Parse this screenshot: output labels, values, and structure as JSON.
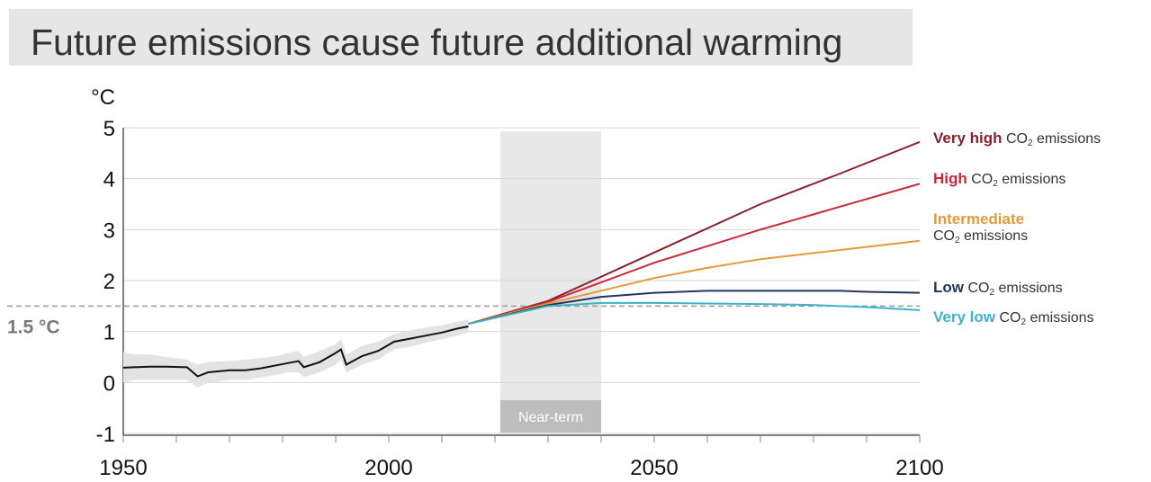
{
  "title": "Future emissions cause future additional warming",
  "colors": {
    "very_high": "#8b1f2f",
    "high": "#c8283a",
    "intermediate": "#e39a3b",
    "low": "#23355e",
    "very_low": "#3fb3c8",
    "observed": "#111111",
    "band": "#e3e3e3",
    "near_term": "#e8e8e8",
    "threshold": "#9a9a9a"
  },
  "chart_data": {
    "type": "line",
    "title": "Future emissions cause future additional warming",
    "ylabel": "°C",
    "xlabel": "",
    "xlim": [
      1950,
      2100
    ],
    "ylim": [
      -1,
      5
    ],
    "x_ticks": [
      1950,
      2000,
      2050,
      2100
    ],
    "x_tick_labels": [
      "1950",
      "2000",
      "2050",
      "2100"
    ],
    "y_ticks": [
      -1,
      0,
      1,
      2,
      3,
      4,
      5
    ],
    "y_tick_labels": [
      "-1",
      "0",
      "1",
      "2",
      "3",
      "4",
      "5"
    ],
    "grid": "horizontal",
    "threshold": {
      "value": 1.5,
      "label": "1.5 °C"
    },
    "near_term": {
      "start": 2021,
      "end": 2040,
      "label": "Near-term"
    },
    "observed": {
      "x": [
        1950,
        1952,
        1955,
        1958,
        1962,
        1964,
        1966,
        1970,
        1973,
        1976,
        1979,
        1981,
        1983,
        1984,
        1987,
        1990,
        1991,
        1992,
        1995,
        1998,
        2001,
        2004,
        2007,
        2010,
        2013,
        2015
      ],
      "y": [
        0.29,
        0.3,
        0.31,
        0.31,
        0.3,
        0.12,
        0.2,
        0.24,
        0.24,
        0.28,
        0.34,
        0.38,
        0.42,
        0.3,
        0.4,
        0.58,
        0.65,
        0.35,
        0.52,
        0.62,
        0.8,
        0.86,
        0.92,
        0.98,
        1.06,
        1.1
      ],
      "band_lower": [
        0.0,
        0.05,
        0.05,
        0.05,
        0.05,
        -0.1,
        0.0,
        0.05,
        0.05,
        0.1,
        0.15,
        0.2,
        0.2,
        0.1,
        0.2,
        0.35,
        0.45,
        0.2,
        0.35,
        0.45,
        0.65,
        0.7,
        0.78,
        0.85,
        0.92,
        0.98
      ],
      "band_upper": [
        0.6,
        0.55,
        0.55,
        0.5,
        0.45,
        0.35,
        0.4,
        0.42,
        0.45,
        0.48,
        0.52,
        0.58,
        0.62,
        0.5,
        0.62,
        0.75,
        0.85,
        0.55,
        0.72,
        0.8,
        0.95,
        1.02,
        1.08,
        1.12,
        1.2,
        1.24
      ]
    },
    "series": [
      {
        "name": "Very high CO2 emissions",
        "key": "very_high",
        "label_bold": "Very high",
        "label_rest": "CO",
        "label_sub": "2",
        "label_tail": " emissions",
        "x": [
          2015,
          2030,
          2050,
          2070,
          2085,
          2100
        ],
        "y": [
          1.15,
          1.6,
          2.55,
          3.5,
          4.1,
          4.72
        ]
      },
      {
        "name": "High CO2 emissions",
        "key": "high",
        "label_bold": "High",
        "label_rest": "CO",
        "label_sub": "2",
        "label_tail": " emissions",
        "x": [
          2015,
          2030,
          2050,
          2070,
          2085,
          2100
        ],
        "y": [
          1.15,
          1.58,
          2.35,
          3.0,
          3.45,
          3.9
        ]
      },
      {
        "name": "Intermediate CO2 emissions",
        "key": "intermediate",
        "label_bold": "Intermediate",
        "label_rest": "CO",
        "label_sub": "2",
        "label_tail": " emissions",
        "x": [
          2015,
          2030,
          2050,
          2060,
          2070,
          2085,
          2100
        ],
        "y": [
          1.15,
          1.55,
          2.05,
          2.25,
          2.42,
          2.6,
          2.78
        ]
      },
      {
        "name": "Low CO2 emissions",
        "key": "low",
        "label_bold": "Low",
        "label_rest": "CO",
        "label_sub": "2",
        "label_tail": " emissions",
        "x": [
          2015,
          2030,
          2040,
          2050,
          2060,
          2070,
          2085,
          2090,
          2100
        ],
        "y": [
          1.15,
          1.52,
          1.68,
          1.76,
          1.8,
          1.8,
          1.8,
          1.78,
          1.76
        ]
      },
      {
        "name": "Very low CO2 emissions",
        "key": "very_low",
        "label_bold": "Very low",
        "label_rest": "CO",
        "label_sub": "2",
        "label_tail": " emissions",
        "x": [
          2015,
          2030,
          2040,
          2050,
          2060,
          2070,
          2080,
          2090,
          2100
        ],
        "y": [
          1.15,
          1.5,
          1.56,
          1.56,
          1.55,
          1.54,
          1.52,
          1.48,
          1.42
        ]
      }
    ]
  }
}
